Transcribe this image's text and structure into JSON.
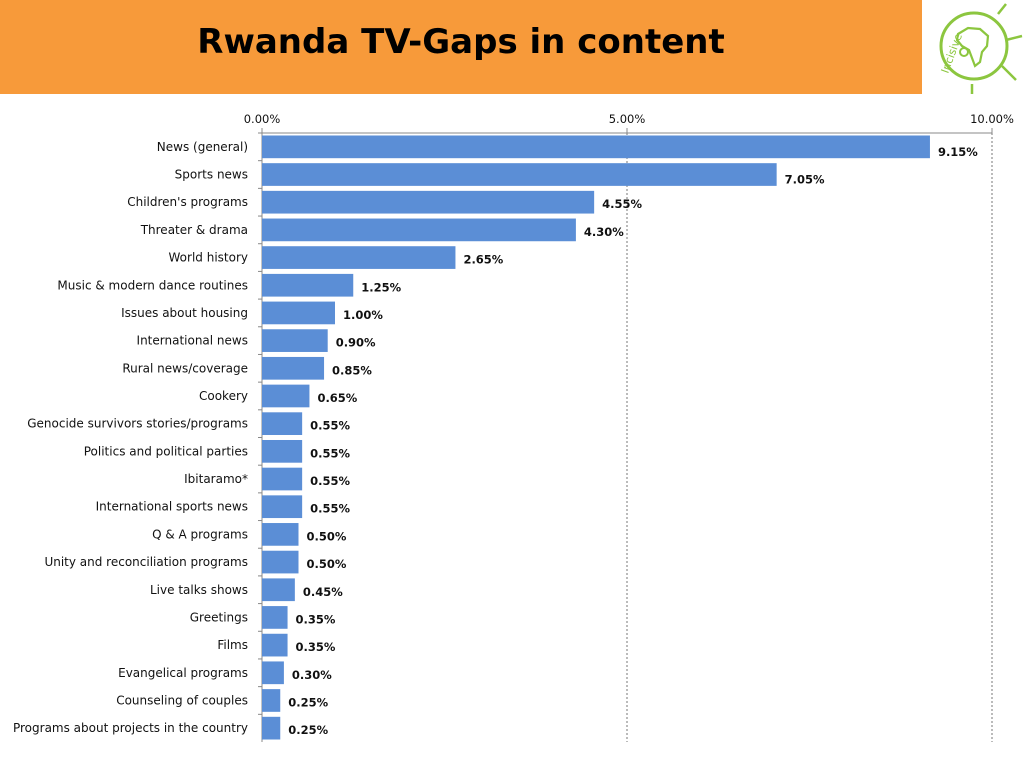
{
  "page": {
    "title": "Rwanda TV-Gaps in content"
  },
  "logo": {
    "text": "Incisive",
    "color": "#8cc63f"
  },
  "colors": {
    "header": "#f79a3a",
    "bar": "#5b8ed6"
  },
  "chart_data": {
    "type": "bar",
    "orientation": "horizontal",
    "categories": [
      "News (general)",
      "Sports news",
      "Children's programs",
      "Threater & drama",
      "World history",
      "Music & modern dance routines",
      "Issues about housing",
      "International news",
      "Rural news/coverage",
      "Cookery",
      "Genocide survivors stories/programs",
      "Politics and political parties",
      "Ibitaramo*",
      "International sports news",
      "Q & A  programs",
      "Unity and reconciliation programs",
      "Live talks shows",
      "Greetings",
      "Films",
      "Evangelical programs",
      "Counseling of couples",
      "Programs about projects in the country"
    ],
    "values": [
      9.15,
      7.05,
      4.55,
      4.3,
      2.65,
      1.25,
      1.0,
      0.9,
      0.85,
      0.65,
      0.55,
      0.55,
      0.55,
      0.55,
      0.5,
      0.5,
      0.45,
      0.35,
      0.35,
      0.3,
      0.25,
      0.25
    ],
    "value_labels": [
      "9.15%",
      "7.05%",
      "4.55%",
      "4.30%",
      "2.65%",
      "1.25%",
      "1.00%",
      "0.90%",
      "0.85%",
      "0.65%",
      "0.55%",
      "0.55%",
      "0.55%",
      "0.55%",
      "0.50%",
      "0.50%",
      "0.45%",
      "0.35%",
      "0.35%",
      "0.30%",
      "0.25%",
      "0.25%"
    ],
    "xlim": [
      0,
      10
    ],
    "xticks": [
      0,
      5,
      10
    ],
    "xtick_labels": [
      "0.00%",
      "5.00%",
      "10.00%"
    ],
    "xaxis_position": "top",
    "grid": "vertical dashed",
    "legend": "none"
  }
}
